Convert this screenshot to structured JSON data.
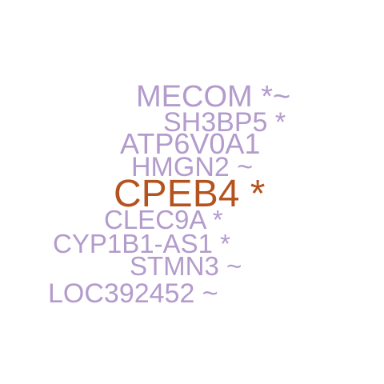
{
  "colors": {
    "background": "#ffffff",
    "default_word": "#b39bcc",
    "highlight_word": "#b5531f"
  },
  "words": [
    {
      "label": "MECOM *~",
      "highlight": false
    },
    {
      "label": "SH3BP5 *",
      "highlight": false
    },
    {
      "label": "ATP6V0A1",
      "highlight": false
    },
    {
      "label": "HMGN2 ~",
      "highlight": false
    },
    {
      "label": "CPEB4 *",
      "highlight": true
    },
    {
      "label": "CLEC9A *",
      "highlight": false
    },
    {
      "label": "CYP1B1-AS1 *",
      "highlight": false
    },
    {
      "label": "STMN3 ~",
      "highlight": false
    },
    {
      "label": "LOC392452 ~",
      "highlight": false
    }
  ]
}
